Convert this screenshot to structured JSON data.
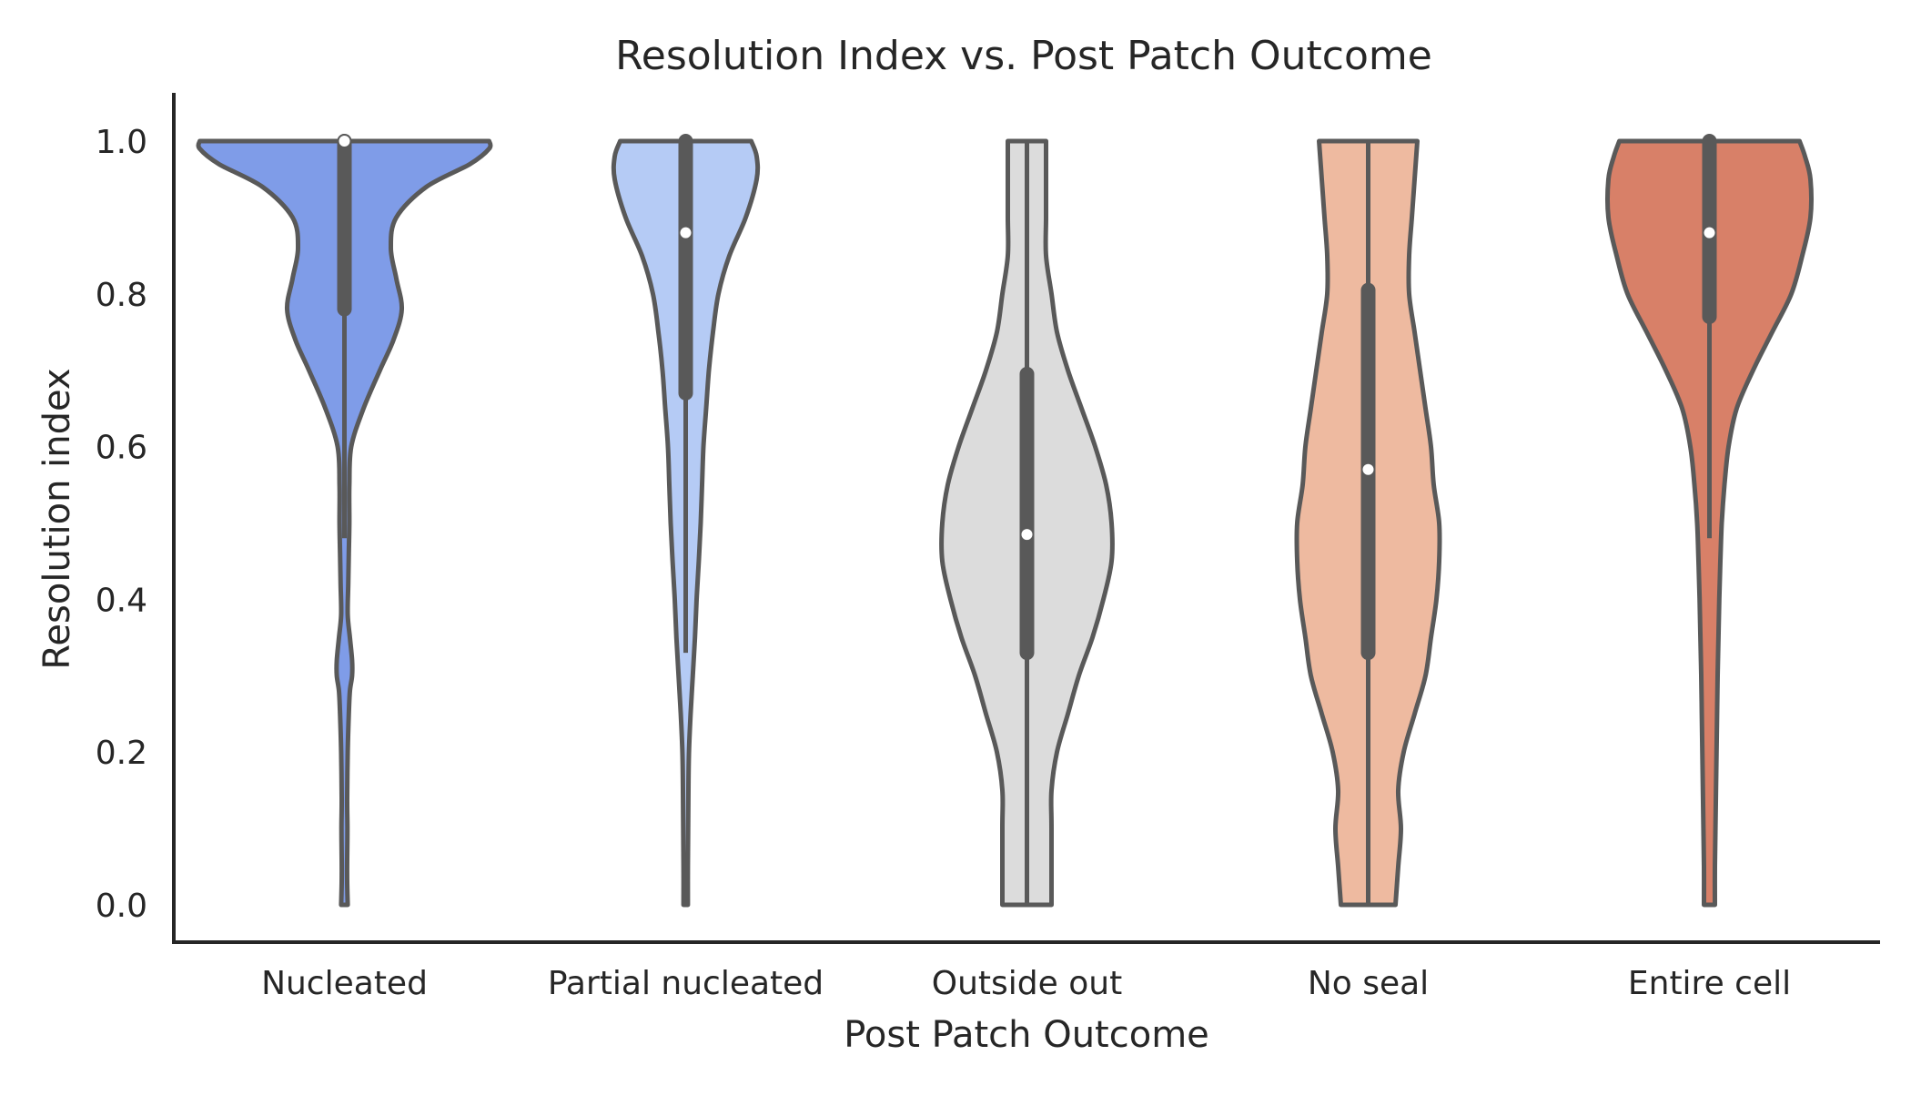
{
  "chart_data": {
    "type": "violin",
    "title": "Resolution Index vs. Post Patch Outcome",
    "xlabel": "Post Patch Outcome",
    "ylabel": "Resolution index",
    "ylim": [
      -0.05,
      1.06
    ],
    "yticks": [
      "0.0",
      "0.2",
      "0.4",
      "0.6",
      "0.8",
      "1.0"
    ],
    "grid": false,
    "legend": "none",
    "categories": [
      "Nucleated",
      "Partial nucleated",
      "Outside out",
      "No seal",
      "Entire cell"
    ],
    "series": [
      {
        "category": "Nucleated",
        "color": "#7f9ce8",
        "median": 1.0,
        "q1": 0.78,
        "q3": 1.0,
        "whisker_low": 0.48,
        "whisker_high": 1.0,
        "min": 0.0,
        "max": 1.0,
        "density": [
          [
            0.0,
            0.012
          ],
          [
            0.03,
            0.01
          ],
          [
            0.06,
            0.01
          ],
          [
            0.1,
            0.011
          ],
          [
            0.14,
            0.01
          ],
          [
            0.2,
            0.012
          ],
          [
            0.25,
            0.016
          ],
          [
            0.28,
            0.02
          ],
          [
            0.3,
            0.028
          ],
          [
            0.32,
            0.028
          ],
          [
            0.35,
            0.02
          ],
          [
            0.38,
            0.012
          ],
          [
            0.42,
            0.014
          ],
          [
            0.46,
            0.016
          ],
          [
            0.5,
            0.018
          ],
          [
            0.55,
            0.018
          ],
          [
            0.6,
            0.025
          ],
          [
            0.65,
            0.07
          ],
          [
            0.7,
            0.13
          ],
          [
            0.74,
            0.18
          ],
          [
            0.78,
            0.21
          ],
          [
            0.82,
            0.19
          ],
          [
            0.86,
            0.17
          ],
          [
            0.9,
            0.19
          ],
          [
            0.94,
            0.3
          ],
          [
            0.97,
            0.46
          ],
          [
            0.99,
            0.53
          ],
          [
            1.0,
            0.53
          ]
        ]
      },
      {
        "category": "Partial nucleated",
        "color": "#b5cbf5",
        "median": 0.88,
        "q1": 0.67,
        "q3": 1.0,
        "whisker_low": 0.33,
        "whisker_high": 1.0,
        "min": 0.0,
        "max": 1.0,
        "density": [
          [
            0.0,
            0.008
          ],
          [
            0.05,
            0.008
          ],
          [
            0.1,
            0.009
          ],
          [
            0.15,
            0.01
          ],
          [
            0.2,
            0.012
          ],
          [
            0.25,
            0.018
          ],
          [
            0.3,
            0.026
          ],
          [
            0.35,
            0.034
          ],
          [
            0.4,
            0.04
          ],
          [
            0.45,
            0.048
          ],
          [
            0.5,
            0.055
          ],
          [
            0.55,
            0.06
          ],
          [
            0.6,
            0.065
          ],
          [
            0.65,
            0.075
          ],
          [
            0.7,
            0.085
          ],
          [
            0.75,
            0.1
          ],
          [
            0.8,
            0.12
          ],
          [
            0.85,
            0.16
          ],
          [
            0.9,
            0.22
          ],
          [
            0.95,
            0.26
          ],
          [
            0.98,
            0.26
          ],
          [
            1.0,
            0.24
          ]
        ]
      },
      {
        "category": "Outside out",
        "color": "#dcdcdc",
        "median": 0.485,
        "q1": 0.33,
        "q3": 0.695,
        "whisker_low": 0.0,
        "whisker_high": 1.0,
        "min": 0.0,
        "max": 1.0,
        "density": [
          [
            0.0,
            0.09
          ],
          [
            0.1,
            0.09
          ],
          [
            0.15,
            0.09
          ],
          [
            0.2,
            0.11
          ],
          [
            0.25,
            0.15
          ],
          [
            0.3,
            0.19
          ],
          [
            0.35,
            0.24
          ],
          [
            0.4,
            0.28
          ],
          [
            0.45,
            0.31
          ],
          [
            0.5,
            0.31
          ],
          [
            0.55,
            0.29
          ],
          [
            0.6,
            0.25
          ],
          [
            0.65,
            0.2
          ],
          [
            0.7,
            0.15
          ],
          [
            0.75,
            0.11
          ],
          [
            0.8,
            0.09
          ],
          [
            0.85,
            0.07
          ],
          [
            0.9,
            0.07
          ],
          [
            0.95,
            0.07
          ],
          [
            1.0,
            0.07
          ]
        ]
      },
      {
        "category": "No seal",
        "color": "#eebaa0",
        "median": 0.57,
        "q1": 0.33,
        "q3": 0.805,
        "whisker_low": 0.0,
        "whisker_high": 1.0,
        "min": 0.0,
        "max": 1.0,
        "density": [
          [
            0.0,
            0.1
          ],
          [
            0.05,
            0.11
          ],
          [
            0.1,
            0.12
          ],
          [
            0.15,
            0.11
          ],
          [
            0.2,
            0.13
          ],
          [
            0.25,
            0.17
          ],
          [
            0.3,
            0.21
          ],
          [
            0.35,
            0.23
          ],
          [
            0.4,
            0.25
          ],
          [
            0.45,
            0.26
          ],
          [
            0.5,
            0.26
          ],
          [
            0.55,
            0.24
          ],
          [
            0.6,
            0.23
          ],
          [
            0.65,
            0.21
          ],
          [
            0.7,
            0.19
          ],
          [
            0.75,
            0.17
          ],
          [
            0.8,
            0.15
          ],
          [
            0.85,
            0.15
          ],
          [
            0.9,
            0.16
          ],
          [
            0.95,
            0.17
          ],
          [
            1.0,
            0.18
          ]
        ]
      },
      {
        "category": "Entire cell",
        "color": "#d88068",
        "median": 0.88,
        "q1": 0.77,
        "q3": 1.0,
        "whisker_low": 0.48,
        "whisker_high": 1.0,
        "min": 0.0,
        "max": 1.0,
        "density": [
          [
            0.0,
            0.02
          ],
          [
            0.05,
            0.02
          ],
          [
            0.1,
            0.022
          ],
          [
            0.15,
            0.024
          ],
          [
            0.2,
            0.026
          ],
          [
            0.25,
            0.028
          ],
          [
            0.3,
            0.03
          ],
          [
            0.35,
            0.033
          ],
          [
            0.4,
            0.036
          ],
          [
            0.45,
            0.04
          ],
          [
            0.5,
            0.045
          ],
          [
            0.55,
            0.055
          ],
          [
            0.6,
            0.07
          ],
          [
            0.65,
            0.1
          ],
          [
            0.7,
            0.16
          ],
          [
            0.75,
            0.23
          ],
          [
            0.8,
            0.3
          ],
          [
            0.85,
            0.34
          ],
          [
            0.9,
            0.37
          ],
          [
            0.95,
            0.37
          ],
          [
            0.98,
            0.35
          ],
          [
            1.0,
            0.33
          ]
        ]
      }
    ],
    "colors": {
      "outline": "#595959",
      "box": "#595959",
      "median_dot": "#ffffff",
      "axis": "#262626",
      "text": "#262626"
    }
  }
}
